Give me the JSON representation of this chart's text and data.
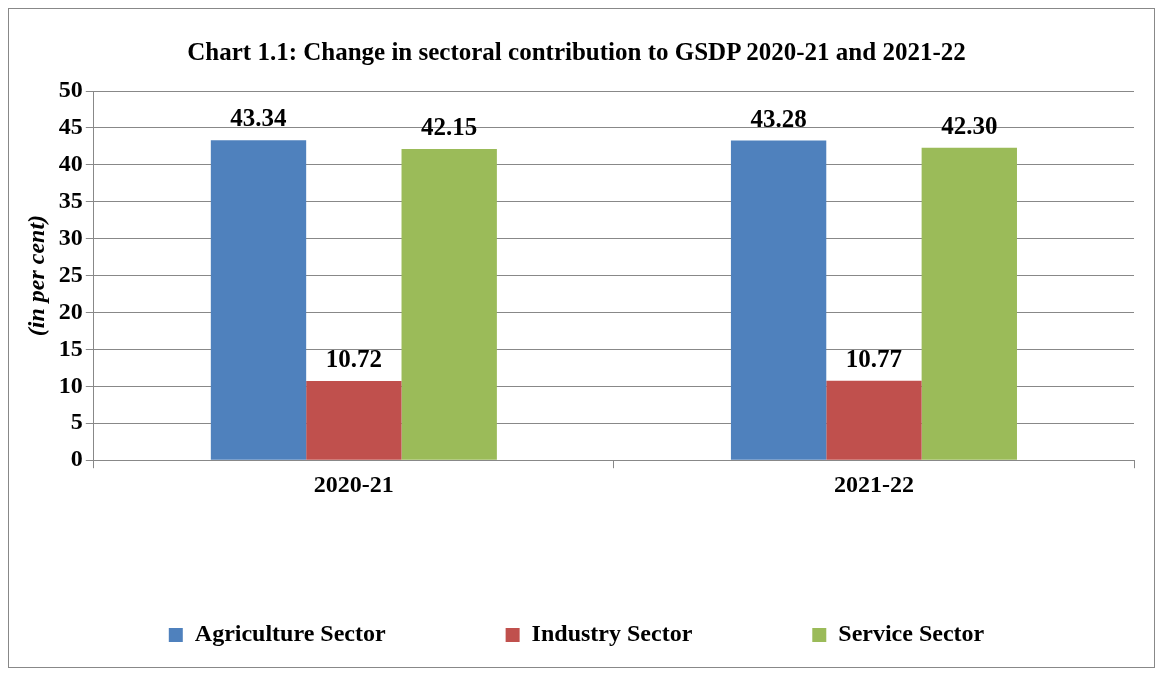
{
  "chart_data": {
    "type": "bar",
    "title": "Chart 1.1: Change in sectoral contribution to GSDP 2020-21 and 2021-22",
    "ylabel": "(in per cent)",
    "categories": [
      "2020-21",
      "2021-22"
    ],
    "series": [
      {
        "name": "Agriculture Sector",
        "color": "#4f81bd",
        "values": [
          43.34,
          43.28
        ],
        "value_labels": [
          "43.34",
          "43.28"
        ]
      },
      {
        "name": "Industry Sector",
        "color": "#c0504d",
        "values": [
          10.72,
          10.77
        ],
        "value_labels": [
          "10.72",
          "10.77"
        ]
      },
      {
        "name": "Service Sector",
        "color": "#9bbb59",
        "values": [
          42.15,
          42.3
        ],
        "value_labels": [
          "42.15",
          "42.30"
        ]
      }
    ],
    "ylim": [
      0,
      50
    ],
    "yticks": [
      0,
      5,
      10,
      15,
      20,
      25,
      30,
      35,
      40,
      45,
      50
    ],
    "grid": "y",
    "legend": "bottom"
  }
}
